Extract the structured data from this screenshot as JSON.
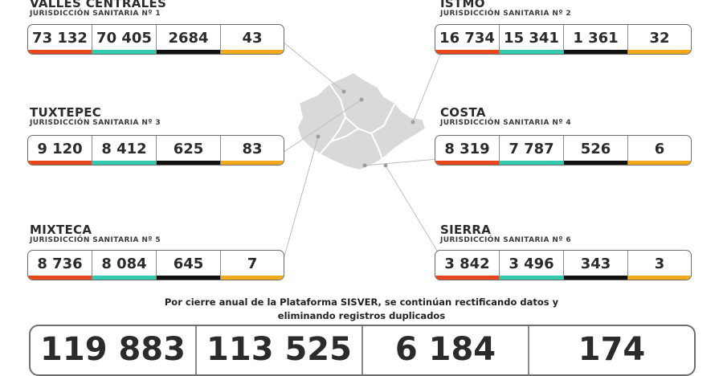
{
  "colors": {
    "red": "#e8471c",
    "teal": "#33c9ae",
    "black": "#111111",
    "amber": "#f2aa1a",
    "map_fill": "#d9d9d9"
  },
  "regions": [
    {
      "name": "VALLES CENTRALES",
      "jurisdiction": "JURISDICCIÓN SANITARIA Nº 1",
      "values": [
        "73 132",
        "70 405",
        "2684",
        "43"
      ]
    },
    {
      "name": "ISTMO",
      "jurisdiction": "JURISDICCIÓN SANITARIA Nº 2",
      "values": [
        "16 734",
        "15 341",
        "1 361",
        "32"
      ]
    },
    {
      "name": "TUXTEPEC",
      "jurisdiction": "JURISDICCIÓN SANITARIA Nº 3",
      "values": [
        "9 120",
        "8 412",
        "625",
        "83"
      ]
    },
    {
      "name": "COSTA",
      "jurisdiction": "JURISDICCIÓN SANITARIA Nº 4",
      "values": [
        "8 319",
        "7 787",
        "526",
        "6"
      ]
    },
    {
      "name": "MIXTECA",
      "jurisdiction": "JURISDICCIÓN SANITARIA Nº 5",
      "values": [
        "8 736",
        "8 084",
        "645",
        "7"
      ]
    },
    {
      "name": "SIERRA",
      "jurisdiction": "JURISDICCIÓN SANITARIA Nº 6",
      "values": [
        "3 842",
        "3 496",
        "343",
        "3"
      ]
    }
  ],
  "notice": {
    "line1": "Por cierre anual de la Plataforma SISVER, se continúan rectificando datos y",
    "line2": "eliminando registros duplicados"
  },
  "totals": [
    "119 883",
    "113 525",
    "6 184",
    "174"
  ]
}
